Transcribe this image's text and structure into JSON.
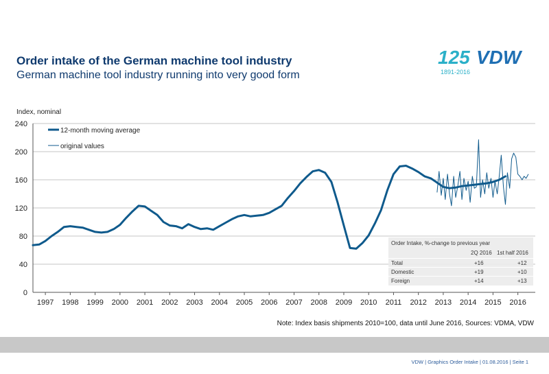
{
  "header": {
    "title": "Order intake of the German machine tool industry",
    "subtitle": "German machine tool industry running into very good form"
  },
  "logo": {
    "number": "125",
    "brand": "VDW",
    "years": "1891-2016"
  },
  "chart_data": {
    "type": "line",
    "ylabel": "Index, nominal",
    "ylim": [
      0,
      240
    ],
    "yticks": [
      0,
      40,
      80,
      120,
      160,
      200,
      240
    ],
    "categories": [
      "1997",
      "1998",
      "1999",
      "2000",
      "2001",
      "2002",
      "2003",
      "2004",
      "2005",
      "2006",
      "2007",
      "2008",
      "2009",
      "2010",
      "2011",
      "2012",
      "2013",
      "2014",
      "2015",
      "2016"
    ],
    "legend": [
      "12-month moving average",
      "original values"
    ],
    "series": [
      {
        "name": "12-month moving average",
        "x": [
          1996.5,
          1996.75,
          1997.0,
          1997.25,
          1997.5,
          1997.75,
          1998.0,
          1998.25,
          1998.5,
          1998.75,
          1999.0,
          1999.25,
          1999.5,
          1999.75,
          2000.0,
          2000.25,
          2000.5,
          2000.75,
          2001.0,
          2001.25,
          2001.5,
          2001.75,
          2002.0,
          2002.25,
          2002.5,
          2002.75,
          2003.0,
          2003.25,
          2003.5,
          2003.75,
          2004.0,
          2004.25,
          2004.5,
          2004.75,
          2005.0,
          2005.25,
          2005.5,
          2005.75,
          2006.0,
          2006.25,
          2006.5,
          2006.75,
          2007.0,
          2007.25,
          2007.5,
          2007.75,
          2008.0,
          2008.25,
          2008.5,
          2008.75,
          2009.0,
          2009.25,
          2009.5,
          2009.75,
          2010.0,
          2010.25,
          2010.5,
          2010.75,
          2011.0,
          2011.25,
          2011.5,
          2011.75,
          2012.0,
          2012.25,
          2012.5,
          2012.75,
          2013.0,
          2013.25,
          2013.5,
          2013.75,
          2014.0,
          2014.25,
          2014.5,
          2014.75,
          2015.0,
          2015.25,
          2015.5
        ],
        "values": [
          67,
          68,
          73,
          80,
          86,
          93,
          94,
          93,
          92,
          89,
          86,
          85,
          86,
          90,
          96,
          106,
          115,
          123,
          122,
          116,
          110,
          100,
          95,
          94,
          91,
          97,
          93,
          90,
          91,
          89,
          94,
          99,
          104,
          108,
          110,
          108,
          109,
          110,
          113,
          118,
          123,
          134,
          144,
          155,
          164,
          172,
          174,
          170,
          157,
          128,
          95,
          63,
          62,
          70,
          81,
          98,
          117,
          145,
          168,
          179,
          180,
          176,
          171,
          165,
          162,
          156,
          150,
          148,
          149,
          151,
          152,
          153,
          154,
          155,
          157,
          160,
          165
        ]
      },
      {
        "name": "original values",
        "x": [
          2012.75,
          2012.83,
          2012.92,
          2013.0,
          2013.08,
          2013.17,
          2013.25,
          2013.33,
          2013.42,
          2013.5,
          2013.58,
          2013.67,
          2013.75,
          2013.83,
          2013.92,
          2014.0,
          2014.08,
          2014.17,
          2014.25,
          2014.33,
          2014.42,
          2014.5,
          2014.58,
          2014.67,
          2014.75,
          2014.83,
          2014.92,
          2015.0,
          2015.08,
          2015.17,
          2015.25,
          2015.33,
          2015.42,
          2015.5,
          2015.58,
          2015.67,
          2015.75,
          2015.83,
          2015.92,
          2016.0,
          2016.08,
          2016.17,
          2016.25,
          2016.33,
          2016.42
        ],
        "values": [
          142,
          172,
          138,
          162,
          132,
          168,
          140,
          123,
          165,
          135,
          150,
          172,
          132,
          162,
          145,
          158,
          128,
          165,
          148,
          150,
          217,
          135,
          160,
          140,
          170,
          148,
          162,
          135,
          158,
          140,
          165,
          195,
          150,
          125,
          170,
          148,
          190,
          198,
          192,
          168,
          165,
          160,
          165,
          162,
          168
        ]
      }
    ],
    "note": "Note: Index basis shipments  2010=100, data until  June 2016, Sources: VDMA, VDW"
  },
  "table": {
    "title": "Order Intake, %-change to previous year",
    "col1": "2Q 2016",
    "col2": "1st half 2016",
    "rows": [
      {
        "label": "Total",
        "v1": "+16",
        "v2": "+12"
      },
      {
        "label": "Domestic",
        "v1": "+19",
        "v2": "+10"
      },
      {
        "label": "Foreign",
        "v1": "+14",
        "v2": "+13"
      }
    ]
  },
  "footer": {
    "text": "VDW  | Graphics Order Intake |   01.08.2016   |   Seite  1"
  },
  "colors": {
    "primary": "#0f5a8c",
    "title": "#0f3a6e",
    "logo_teal": "#2bb0c8",
    "logo_blue": "#1f6fb3"
  }
}
